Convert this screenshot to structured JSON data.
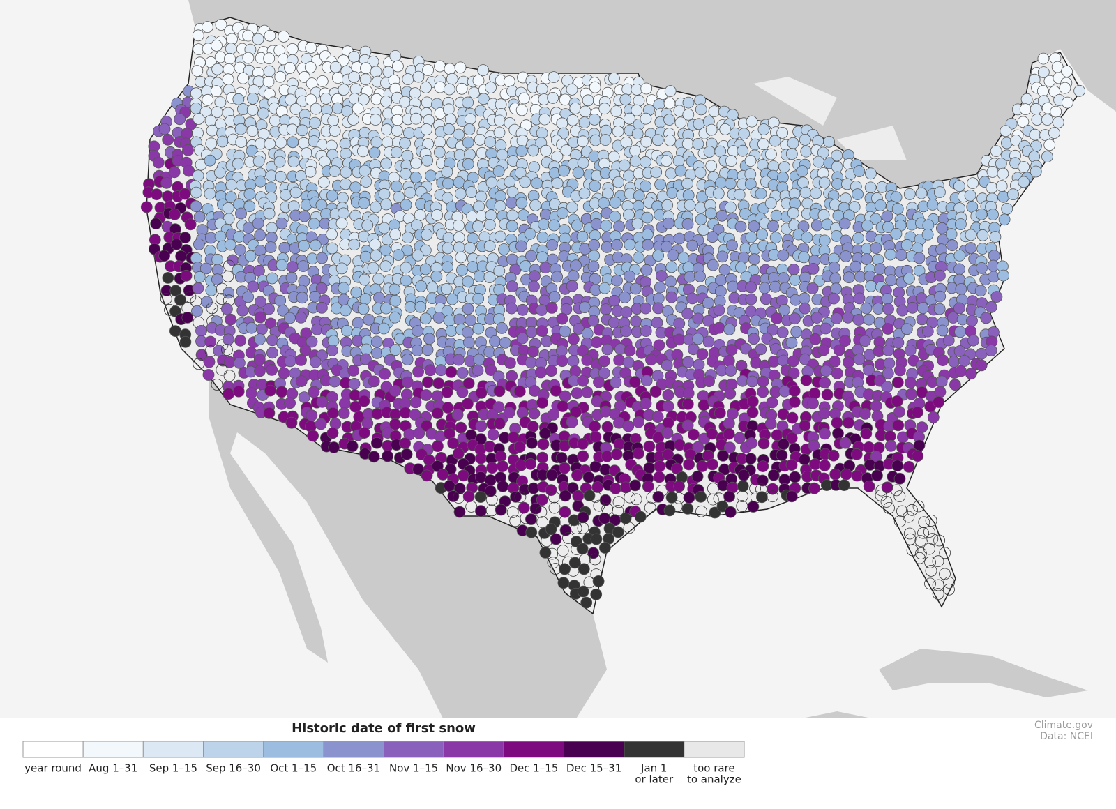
{
  "map": {
    "legend": {
      "title": "Historic date of first snow",
      "items": [
        {
          "label": [
            "year round"
          ],
          "color": "#ffffff"
        },
        {
          "label": [
            "Aug 1–31"
          ],
          "color": "#f3f8fc"
        },
        {
          "label": [
            "Sep 1–15"
          ],
          "color": "#dce9f5"
        },
        {
          "label": [
            "Sep 16–30"
          ],
          "color": "#bcd3ea"
        },
        {
          "label": [
            "Oct 1–15"
          ],
          "color": "#9cbde0"
        },
        {
          "label": [
            "Oct 16–31"
          ],
          "color": "#8b93cf"
        },
        {
          "label": [
            "Nov 1–15"
          ],
          "color": "#8a60bd"
        },
        {
          "label": [
            "Nov 16–30"
          ],
          "color": "#8a38a8"
        },
        {
          "label": [
            "Dec 1–15"
          ],
          "color": "#7d0a7f"
        },
        {
          "label": [
            "Dec 15–31"
          ],
          "color": "#4a0050"
        },
        {
          "label": [
            "Jan 1",
            "or later"
          ],
          "color": "#333333"
        },
        {
          "label": [
            "too rare",
            "to analyze"
          ],
          "color": "#e8e8e8"
        }
      ]
    },
    "credits": [
      "Climate.gov",
      "Data: NCEI"
    ]
  }
}
